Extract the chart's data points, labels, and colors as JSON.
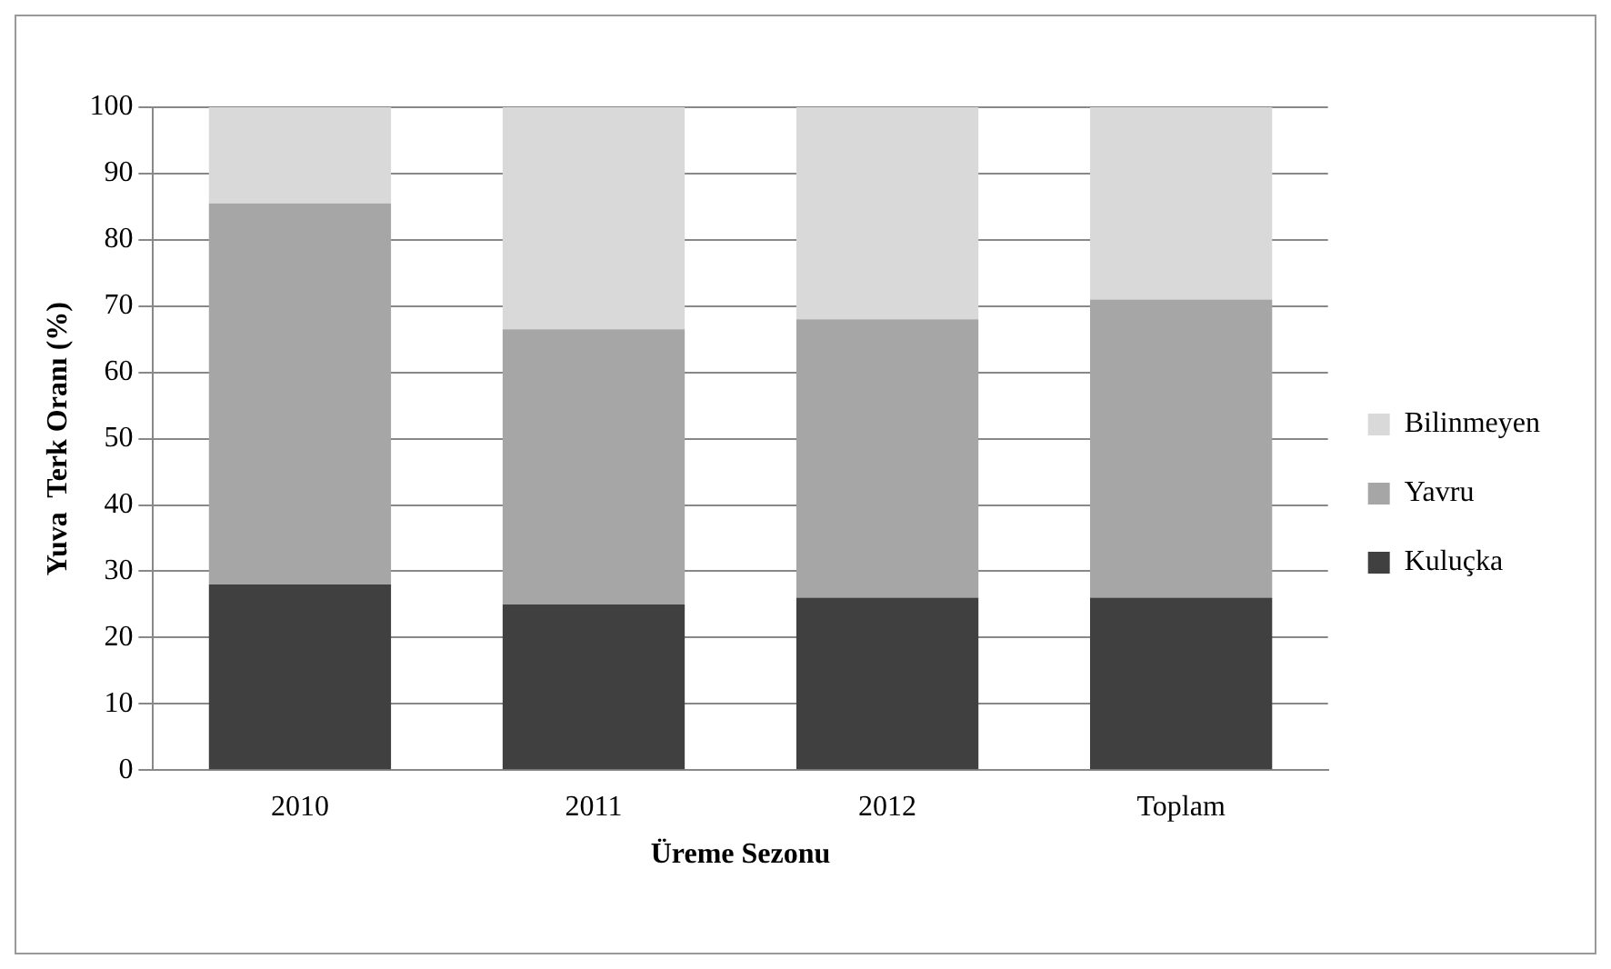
{
  "chart_data": {
    "type": "bar",
    "stacked": true,
    "xlabel": "Üreme Sezonu",
    "ylabel": "Yuva  Terk Oranı (%)",
    "categories": [
      "2010",
      "2011",
      "2012",
      "Toplam"
    ],
    "series": [
      {
        "name": "Kuluçka",
        "color": "#404040",
        "values": [
          28,
          25,
          26,
          26
        ]
      },
      {
        "name": "Yavru",
        "color": "#a6a6a6",
        "values": [
          57.5,
          41.5,
          42,
          45
        ]
      },
      {
        "name": "Bilinmeyen",
        "color": "#d9d9d9",
        "values": [
          14.5,
          33.5,
          32,
          29
        ]
      }
    ],
    "ylim": [
      0,
      100
    ],
    "yticks": [
      0,
      10,
      20,
      30,
      40,
      50,
      60,
      70,
      80,
      90,
      100
    ],
    "grid": "y",
    "legend": "right"
  }
}
